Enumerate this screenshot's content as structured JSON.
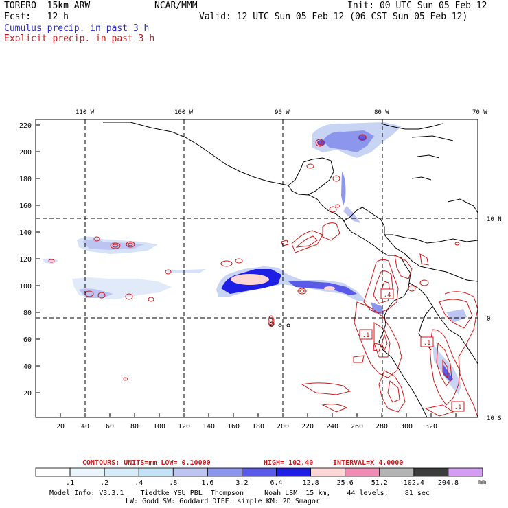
{
  "header": {
    "model": "TORERO  15km ARW",
    "org": "NCAR/MMM",
    "init": "Init: 00 UTC Sun 05 Feb 12",
    "fcst": "Fcst:   12 h",
    "valid": "Valid: 12 UTC Sun 05 Feb 12 (06 CST Sun 05 Feb 12)",
    "cumulus": "Cumulus precip. in past 3 h",
    "explicit": "Explicit precip. in past 3 h"
  },
  "colors": {
    "cumulus": "#2b2bd0",
    "explicit": "#d01818",
    "coast": "#000000"
  },
  "map": {
    "top_lon_labels": [
      "110 W",
      "100 W",
      "90 W",
      "80 W",
      "70 W"
    ],
    "right_lat_labels": [
      "10 N",
      "0",
      "10 S"
    ],
    "y_ticks": [
      "220",
      "200",
      "180",
      "160",
      "140",
      "120",
      "100",
      "80",
      "60",
      "40",
      "20"
    ],
    "x_ticks": [
      "20",
      "40",
      "60",
      "80",
      "100",
      "120",
      "140",
      "160",
      "180",
      "200",
      "220",
      "240",
      "260",
      "280",
      "300",
      "320"
    ],
    "box_labels": [
      ".4",
      ".1",
      ".1",
      ".1"
    ]
  },
  "contours_line": {
    "label": "CONTOURS:  UNITS=mm  LOW= 0.10000",
    "high": "HIGH=  102.40",
    "interval": "INTERVAL=X  4.0000"
  },
  "colorbar": {
    "colors": [
      "#ffffff",
      "#eaf4fb",
      "#d6ecf8",
      "#c2e2f6",
      "#bcc4f2",
      "#8c96ec",
      "#5a5ae8",
      "#1e1ee4",
      "#ffd6d6",
      "#f08cb4",
      "#b4b4b4",
      "#3c3c3c",
      "#d49cf2"
    ],
    "labels": [
      ".1",
      ".2",
      ".4",
      ".8",
      "1.6",
      "3.2",
      "6.4",
      "12.8",
      "25.6",
      "51.2",
      "102.4",
      "204.8"
    ],
    "unit": "mm"
  },
  "footer": {
    "line1": "Model Info: V3.3.1    Tiedtke YSU PBL  Thompson     Noah LSM  15 km,    44 levels,    81 sec",
    "line2": "LW: Godd SW: Goddard DIFF: simple KM: 2D Smagor"
  }
}
